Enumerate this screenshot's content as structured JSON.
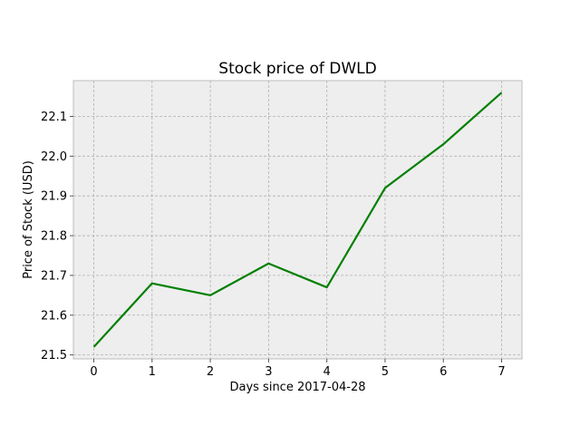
{
  "chart_data": {
    "type": "line",
    "title": "Stock price of DWLD",
    "xlabel": "Days since 2017-04-28",
    "ylabel": "Price of Stock (USD)",
    "x": [
      0,
      1,
      2,
      3,
      4,
      5,
      6,
      7
    ],
    "series": [
      {
        "values": [
          21.52,
          21.68,
          21.65,
          21.73,
          21.67,
          21.92,
          22.03,
          22.16
        ],
        "color": "#008000"
      }
    ],
    "xlim": [
      -0.35,
      7.35
    ],
    "ylim": [
      21.49,
      22.19
    ],
    "xticks": [
      0,
      1,
      2,
      3,
      4,
      5,
      6,
      7
    ],
    "yticks": [
      21.5,
      21.6,
      21.7,
      21.8,
      21.9,
      22.0,
      22.1
    ],
    "ytick_labels": [
      "21.5",
      "21.6",
      "21.7",
      "21.8",
      "21.9",
      "22.0",
      "22.1"
    ],
    "grid": true,
    "background_color": "#eeeeee",
    "grid_color": "#b0b0b0"
  }
}
